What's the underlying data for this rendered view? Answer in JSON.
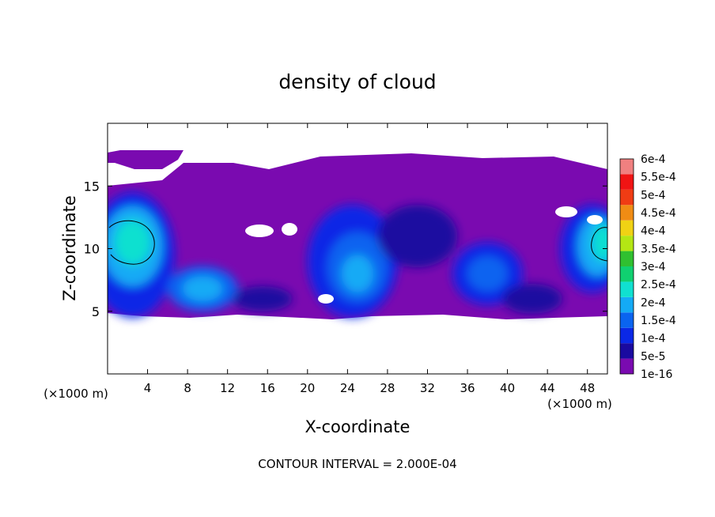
{
  "chart_data": {
    "type": "heatmap",
    "title": "density of cloud",
    "xlabel": "X-coordinate",
    "ylabel": "Z-coordinate",
    "x_unit": "(×1000 m)",
    "z_unit": "(×1000 m)",
    "footer": "CONTOUR INTERVAL = 2.000E-04",
    "xlim": [
      0,
      50
    ],
    "ylim": [
      0,
      20
    ],
    "x_ticks": [
      4,
      8,
      12,
      16,
      20,
      24,
      28,
      32,
      36,
      40,
      44,
      48
    ],
    "y_ticks": [
      5,
      10,
      15
    ],
    "colorbar": {
      "labels": [
        "1e-16",
        "5e-5",
        "1e-4",
        "1.5e-4",
        "2e-4",
        "2.5e-4",
        "3e-4",
        "3.5e-4",
        "4e-4",
        "4.5e-4",
        "5e-4",
        "5.5e-4",
        "6e-4"
      ],
      "colors": [
        "#7a0ab0",
        "#1a0aa0",
        "#0a28e6",
        "#0a64f0",
        "#14aaf5",
        "#10e0d0",
        "#10d070",
        "#30c030",
        "#b4e614",
        "#f0d214",
        "#f08c14",
        "#f03c14",
        "#f01414",
        "#f08080"
      ]
    },
    "blobs": [
      {
        "x": 2.5,
        "z": 9.5,
        "rx": 4.2,
        "rz": 5.0,
        "level": 2
      },
      {
        "x": 2.5,
        "z": 10.2,
        "rx": 3.0,
        "rz": 3.2,
        "level": 4
      },
      {
        "x": 2.5,
        "z": 10.5,
        "rx": 1.8,
        "rz": 1.8,
        "level": 5
      },
      {
        "x": 9.5,
        "z": 6.8,
        "rx": 3.5,
        "rz": 1.8,
        "level": 3
      },
      {
        "x": 9.5,
        "z": 6.8,
        "rx": 2.0,
        "rz": 1.0,
        "level": 4
      },
      {
        "x": 24.5,
        "z": 9.0,
        "rx": 4.5,
        "rz": 4.5,
        "level": 2
      },
      {
        "x": 25.0,
        "z": 8.5,
        "rx": 3.0,
        "rz": 2.8,
        "level": 3
      },
      {
        "x": 25.0,
        "z": 8.0,
        "rx": 1.6,
        "rz": 1.5,
        "level": 4
      },
      {
        "x": 38.0,
        "z": 8.0,
        "rx": 3.5,
        "rz": 2.5,
        "level": 2
      },
      {
        "x": 38.0,
        "z": 8.0,
        "rx": 2.0,
        "rz": 1.4,
        "level": 3
      },
      {
        "x": 48.5,
        "z": 10.0,
        "rx": 3.2,
        "rz": 3.5,
        "level": 2
      },
      {
        "x": 49.0,
        "z": 10.2,
        "rx": 2.0,
        "rz": 2.4,
        "level": 4
      },
      {
        "x": 49.5,
        "z": 10.5,
        "rx": 1.0,
        "rz": 1.5,
        "level": 5
      },
      {
        "x": 31.0,
        "z": 11.0,
        "rx": 4.0,
        "rz": 2.5,
        "level": 1
      },
      {
        "x": 15.5,
        "z": 6.0,
        "rx": 3.0,
        "rz": 1.0,
        "level": 1
      },
      {
        "x": 42.5,
        "z": 6.0,
        "rx": 3.0,
        "rz": 1.2,
        "level": 1
      }
    ]
  }
}
